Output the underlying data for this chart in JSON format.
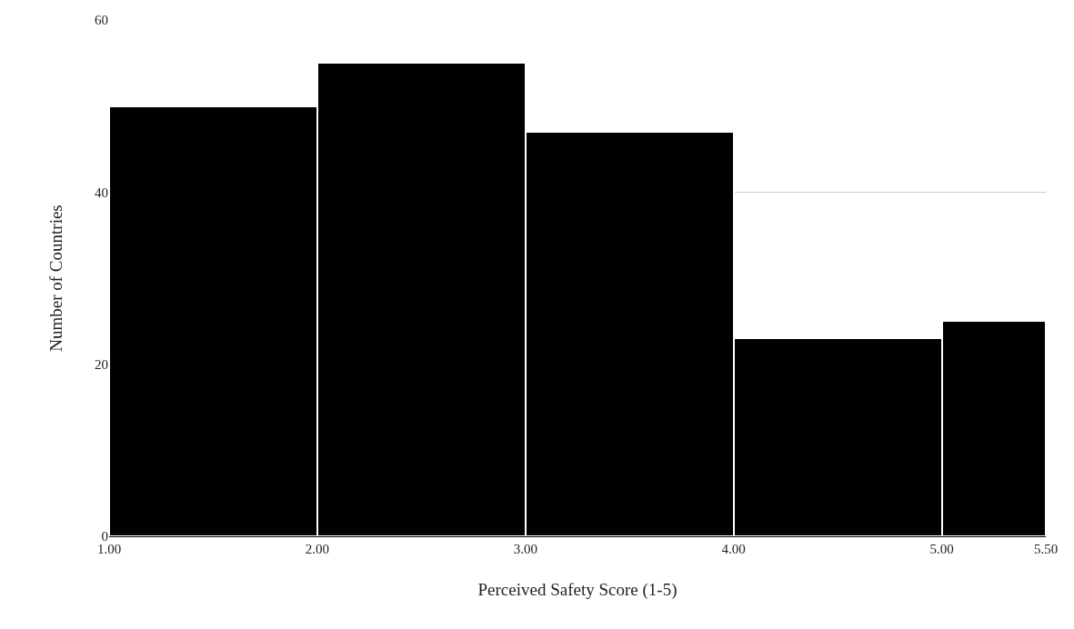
{
  "chart_data": {
    "type": "histogram",
    "xlabel": "Perceived Safety Score (1-5)",
    "ylabel": "Number of Countries",
    "bins": [
      1,
      2,
      3,
      4,
      5,
      5.5
    ],
    "values": [
      50,
      55,
      47,
      23,
      25
    ],
    "color": "#000000",
    "xticks": [
      {
        "value": 1,
        "label": "1.00"
      },
      {
        "value": 2,
        "label": "2.00"
      },
      {
        "value": 3,
        "label": "3.00"
      },
      {
        "value": 4,
        "label": "4.00"
      },
      {
        "value": 5,
        "label": "5.00"
      },
      {
        "value": 5.5,
        "label": "5.50"
      }
    ],
    "xlim": [
      1,
      5.5
    ],
    "ylim": [
      0,
      60
    ],
    "yticks": [
      0,
      20,
      40,
      60
    ],
    "grid": "y",
    "legend": false
  }
}
